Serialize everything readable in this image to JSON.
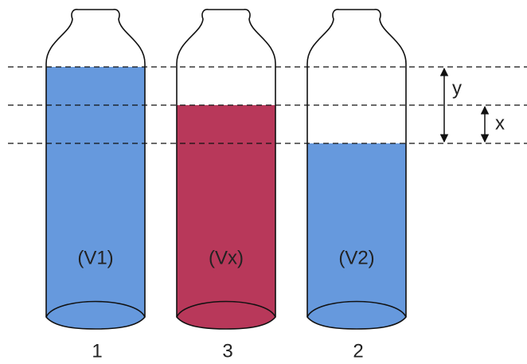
{
  "vials": [
    {
      "label": "(V1)",
      "number": "1"
    },
    {
      "label": "(Vx)",
      "number": "3"
    },
    {
      "label": "(V2)",
      "number": "2"
    }
  ],
  "arrows": {
    "y": "y",
    "x": "x"
  }
}
